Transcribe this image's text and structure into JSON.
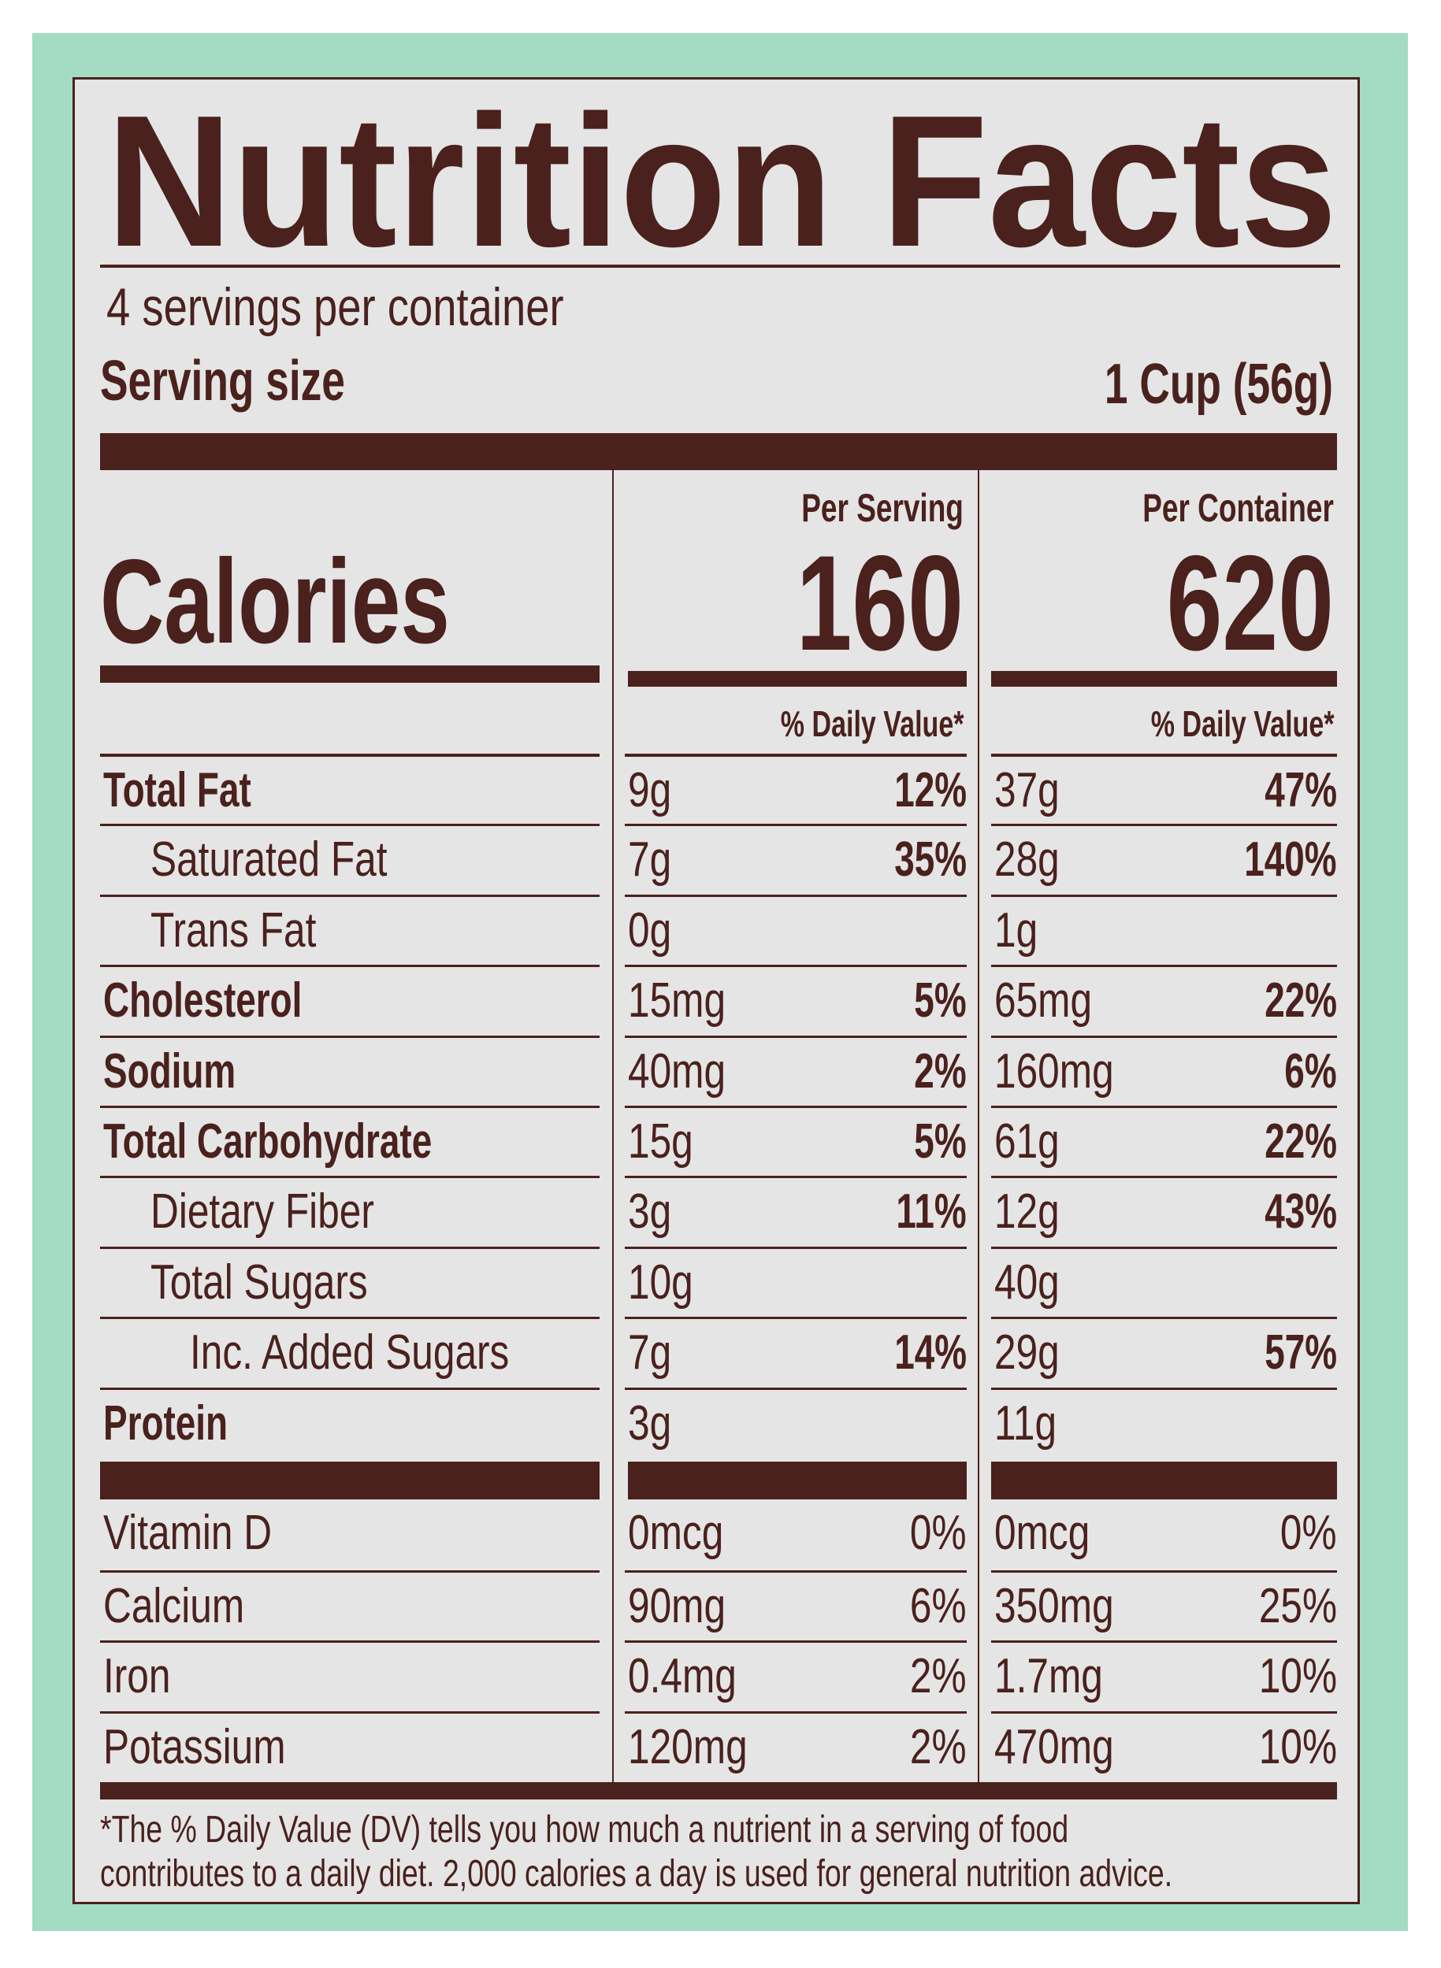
{
  "colors": {
    "background": "#a3dcc3",
    "label": "#e5e5e5",
    "ink": "#4a211d"
  },
  "title": "Nutrition Facts",
  "servings_per_container": "4 servings per container",
  "serving_size": {
    "label": "Serving size",
    "value": "1 Cup (56g)"
  },
  "columns": {
    "per_serving": "Per Serving",
    "per_container": "Per Container",
    "daily_value": "% Daily Value*"
  },
  "calories": {
    "label": "Calories",
    "per_serving": "160",
    "per_container": "620"
  },
  "nutrients": [
    {
      "name": "Total Fat",
      "bold": true,
      "indent": 0,
      "serving_amount": "9g",
      "serving_dv": "12%",
      "container_amount": "37g",
      "container_dv": "47%"
    },
    {
      "name": "Saturated Fat",
      "bold": false,
      "indent": 1,
      "serving_amount": "7g",
      "serving_dv": "35%",
      "container_amount": "28g",
      "container_dv": "140%"
    },
    {
      "name": "Trans Fat",
      "bold": false,
      "indent": 1,
      "serving_amount": "0g",
      "serving_dv": "",
      "container_amount": "1g",
      "container_dv": ""
    },
    {
      "name": "Cholesterol",
      "bold": true,
      "indent": 0,
      "serving_amount": "15mg",
      "serving_dv": "5%",
      "container_amount": "65mg",
      "container_dv": "22%"
    },
    {
      "name": "Sodium",
      "bold": true,
      "indent": 0,
      "serving_amount": "40mg",
      "serving_dv": "2%",
      "container_amount": "160mg",
      "container_dv": "6%"
    },
    {
      "name": "Total Carbohydrate",
      "bold": true,
      "indent": 0,
      "serving_amount": "15g",
      "serving_dv": "5%",
      "container_amount": "61g",
      "container_dv": "22%"
    },
    {
      "name": "Dietary Fiber",
      "bold": false,
      "indent": 1,
      "serving_amount": "3g",
      "serving_dv": "11%",
      "container_amount": "12g",
      "container_dv": "43%"
    },
    {
      "name": "Total Sugars",
      "bold": false,
      "indent": 1,
      "serving_amount": "10g",
      "serving_dv": "",
      "container_amount": "40g",
      "container_dv": ""
    },
    {
      "name": "Inc. Added Sugars",
      "bold": false,
      "indent": 2,
      "serving_amount": "7g",
      "serving_dv": "14%",
      "container_amount": "29g",
      "container_dv": "57%"
    },
    {
      "name": "Protein",
      "bold": true,
      "indent": 0,
      "serving_amount": "3g",
      "serving_dv": "",
      "container_amount": "11g",
      "container_dv": ""
    }
  ],
  "vitamins": [
    {
      "name": "Vitamin D",
      "serving_amount": "0mcg",
      "serving_dv": "0%",
      "container_amount": "0mcg",
      "container_dv": "0%"
    },
    {
      "name": "Calcium",
      "serving_amount": "90mg",
      "serving_dv": "6%",
      "container_amount": "350mg",
      "container_dv": "25%"
    },
    {
      "name": "Iron",
      "serving_amount": "0.4mg",
      "serving_dv": "2%",
      "container_amount": "1.7mg",
      "container_dv": "10%"
    },
    {
      "name": "Potassium",
      "serving_amount": "120mg",
      "serving_dv": "2%",
      "container_amount": "470mg",
      "container_dv": "10%"
    }
  ],
  "footnote": {
    "line1": "*The % Daily Value (DV) tells you how much a nutrient in a serving of food",
    "line2": "contributes to a daily diet. 2,000 calories a day is used for general nutrition advice."
  }
}
